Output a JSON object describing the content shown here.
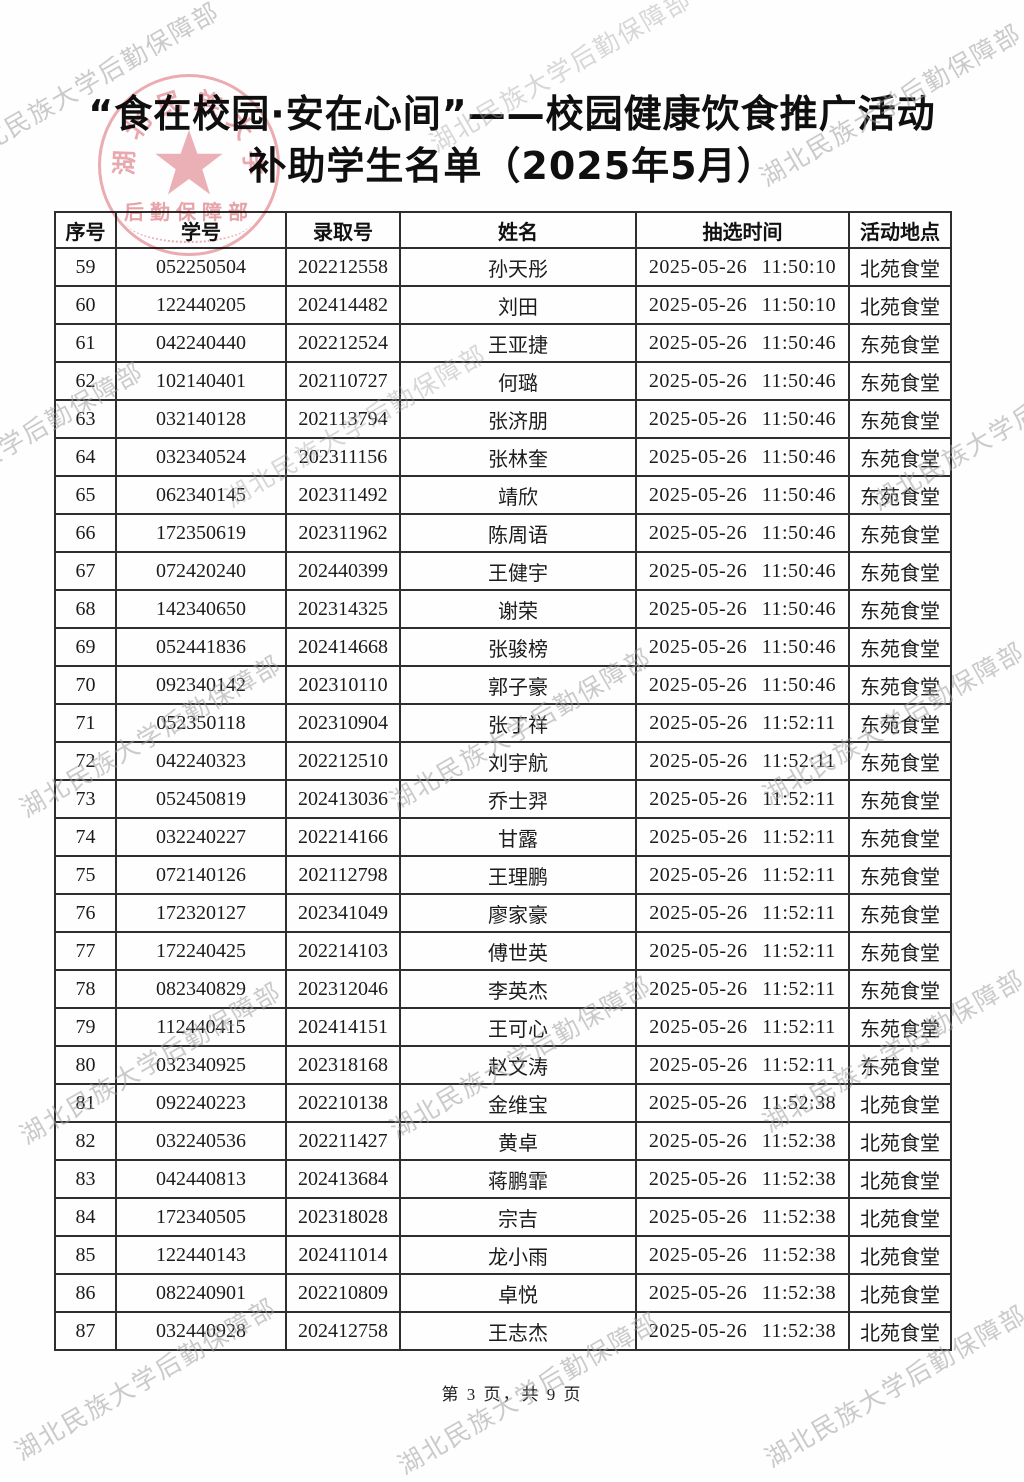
{
  "page": {
    "title_line1": "“食在校园·安在心间”——校园健康饮食推广活动",
    "title_line2": "补助学生名单（2025年5月）",
    "footer": "第 3 页，共 9 页"
  },
  "watermark": {
    "text": "湖北民族大学后勤保障部"
  },
  "stamp": {
    "arc_text": "湖北民族大学",
    "bottom_text": "后勤保障部",
    "color": "#d85862"
  },
  "table": {
    "headers": [
      "序号",
      "学号",
      "录取号",
      "姓名",
      "抽选时间",
      "活动地点"
    ],
    "rows": [
      [
        "59",
        "052250504",
        "202212558",
        "孙天彤",
        "2025-05-26 11:50:10",
        "北苑食堂"
      ],
      [
        "60",
        "122440205",
        "202414482",
        "刘田",
        "2025-05-26 11:50:10",
        "北苑食堂"
      ],
      [
        "61",
        "042240440",
        "202212524",
        "王亚捷",
        "2025-05-26 11:50:46",
        "东苑食堂"
      ],
      [
        "62",
        "102140401",
        "202110727",
        "何璐",
        "2025-05-26 11:50:46",
        "东苑食堂"
      ],
      [
        "63",
        "032140128",
        "202113794",
        "张济朋",
        "2025-05-26 11:50:46",
        "东苑食堂"
      ],
      [
        "64",
        "032340524",
        "202311156",
        "张林奎",
        "2025-05-26 11:50:46",
        "东苑食堂"
      ],
      [
        "65",
        "062340145",
        "202311492",
        "靖欣",
        "2025-05-26 11:50:46",
        "东苑食堂"
      ],
      [
        "66",
        "172350619",
        "202311962",
        "陈周语",
        "2025-05-26 11:50:46",
        "东苑食堂"
      ],
      [
        "67",
        "072420240",
        "202440399",
        "王健宇",
        "2025-05-26 11:50:46",
        "东苑食堂"
      ],
      [
        "68",
        "142340650",
        "202314325",
        "谢荣",
        "2025-05-26 11:50:46",
        "东苑食堂"
      ],
      [
        "69",
        "052441836",
        "202414668",
        "张骏榜",
        "2025-05-26 11:50:46",
        "东苑食堂"
      ],
      [
        "70",
        "092340142",
        "202310110",
        "郭子豪",
        "2025-05-26 11:50:46",
        "东苑食堂"
      ],
      [
        "71",
        "052350118",
        "202310904",
        "张丁祥",
        "2025-05-26 11:52:11",
        "东苑食堂"
      ],
      [
        "72",
        "042240323",
        "202212510",
        "刘宇航",
        "2025-05-26 11:52:11",
        "东苑食堂"
      ],
      [
        "73",
        "052450819",
        "202413036",
        "乔士羿",
        "2025-05-26 11:52:11",
        "东苑食堂"
      ],
      [
        "74",
        "032240227",
        "202214166",
        "甘露",
        "2025-05-26 11:52:11",
        "东苑食堂"
      ],
      [
        "75",
        "072140126",
        "202112798",
        "王理鹏",
        "2025-05-26 11:52:11",
        "东苑食堂"
      ],
      [
        "76",
        "172320127",
        "202341049",
        "廖家豪",
        "2025-05-26 11:52:11",
        "东苑食堂"
      ],
      [
        "77",
        "172240425",
        "202214103",
        "傅世英",
        "2025-05-26 11:52:11",
        "东苑食堂"
      ],
      [
        "78",
        "082340829",
        "202312046",
        "李英杰",
        "2025-05-26 11:52:11",
        "东苑食堂"
      ],
      [
        "79",
        "112440415",
        "202414151",
        "王可心",
        "2025-05-26 11:52:11",
        "东苑食堂"
      ],
      [
        "80",
        "032340925",
        "202318168",
        "赵文涛",
        "2025-05-26 11:52:11",
        "东苑食堂"
      ],
      [
        "81",
        "092240223",
        "202210138",
        "金维宝",
        "2025-05-26 11:52:38",
        "北苑食堂"
      ],
      [
        "82",
        "032240536",
        "202211427",
        "黄卓",
        "2025-05-26 11:52:38",
        "北苑食堂"
      ],
      [
        "83",
        "042440813",
        "202413684",
        "蒋鹏霏",
        "2025-05-26 11:52:38",
        "北苑食堂"
      ],
      [
        "84",
        "172340505",
        "202318028",
        "宗吉",
        "2025-05-26 11:52:38",
        "北苑食堂"
      ],
      [
        "85",
        "122440143",
        "202411014",
        "龙小雨",
        "2025-05-26 11:52:38",
        "北苑食堂"
      ],
      [
        "86",
        "082240901",
        "202210809",
        "卓悦",
        "2025-05-26 11:52:38",
        "北苑食堂"
      ],
      [
        "87",
        "032440928",
        "202412758",
        "王志杰",
        "2025-05-26 11:52:38",
        "北苑食堂"
      ]
    ]
  }
}
